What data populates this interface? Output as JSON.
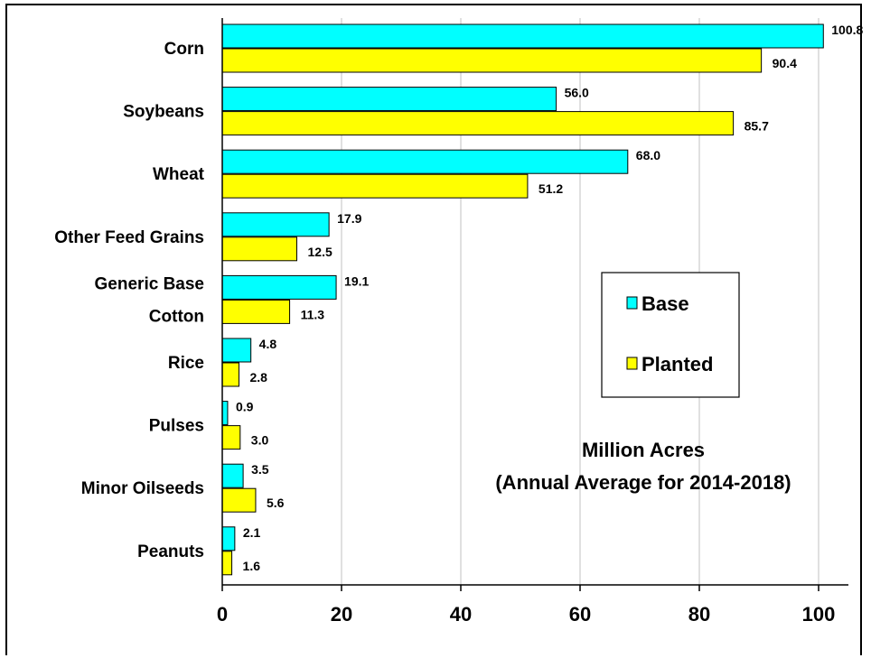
{
  "chart_data": {
    "type": "bar",
    "orientation": "horizontal",
    "categories": [
      "Corn",
      "Soybeans",
      "Wheat",
      "Other Feed Grains",
      "Generic Base|Cotton",
      "Rice",
      "Pulses",
      "Minor Oilseeds",
      "Peanuts"
    ],
    "series": [
      {
        "name": "Base",
        "color": "#00ffff",
        "values": [
          100.8,
          56.0,
          68.0,
          17.9,
          19.1,
          4.8,
          0.9,
          3.5,
          2.1
        ],
        "labels": [
          "100.8",
          "56.0",
          "68.0",
          "17.9",
          "19.1",
          "4.8",
          "0.9",
          "3.5",
          "2.1"
        ]
      },
      {
        "name": "Planted",
        "color": "#ffff00",
        "values": [
          90.4,
          85.7,
          51.2,
          12.5,
          11.3,
          2.8,
          3.0,
          5.6,
          1.6
        ],
        "labels": [
          "90.4",
          "85.7",
          "51.2",
          "12.5",
          "11.3",
          "2.8",
          "3.0",
          "5.6",
          "1.6"
        ]
      }
    ],
    "highlight_label": {
      "series": 0,
      "index": 5,
      "color": "#1f1f8f"
    },
    "xlim": [
      0,
      105
    ],
    "x_ticks": [
      "0",
      "20",
      "40",
      "60",
      "80",
      "100"
    ],
    "x_gridlines": true,
    "gridline_color": "#c0c0c0",
    "legend_placement": "center-right",
    "annotation": [
      "Million Acres",
      "(Annual Average for 2014-2018)"
    ]
  }
}
